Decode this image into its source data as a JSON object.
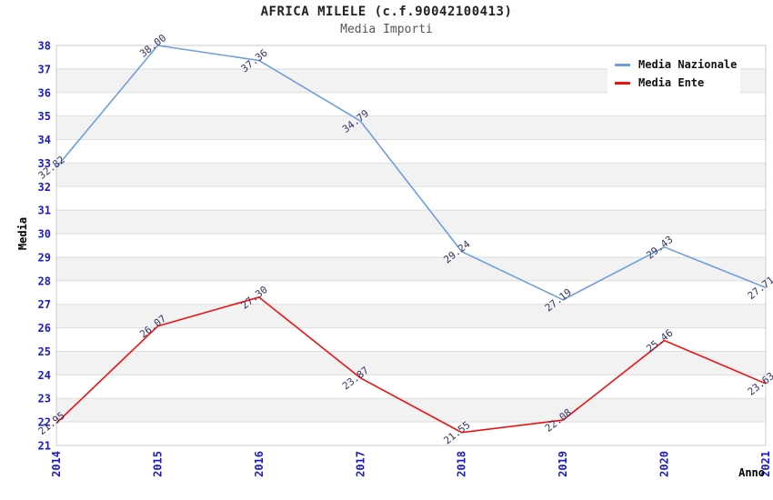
{
  "chart_data": {
    "type": "line",
    "title": "AFRICA MILELE (c.f.90042100413)",
    "subtitle": "Media Importi",
    "xlabel": "Anno",
    "ylabel": "Media",
    "categories": [
      "2014",
      "2015",
      "2016",
      "2017",
      "2018",
      "2019",
      "2020",
      "2021"
    ],
    "series": [
      {
        "name": "Media Nazionale",
        "color": "#6f9fd8",
        "values": [
          32.82,
          38.0,
          37.36,
          34.79,
          29.24,
          27.19,
          29.43,
          27.71
        ]
      },
      {
        "name": "Media Ente",
        "color": "#ee1111",
        "values": [
          21.95,
          26.07,
          27.3,
          23.87,
          21.55,
          22.08,
          25.46,
          23.63
        ]
      }
    ],
    "ylim": [
      21,
      38
    ],
    "y_step": 1,
    "grid": true,
    "legend_position": "top-right",
    "band_fill_alternating": true,
    "colors": {
      "tick_label": "#1a1acd",
      "point_label": "#333366",
      "band_gray": "#f2f2f2",
      "band_white": "#ffffff",
      "gridline": "#dddddd",
      "plot_border": "#cccccc",
      "axis_title": "#000000"
    }
  }
}
